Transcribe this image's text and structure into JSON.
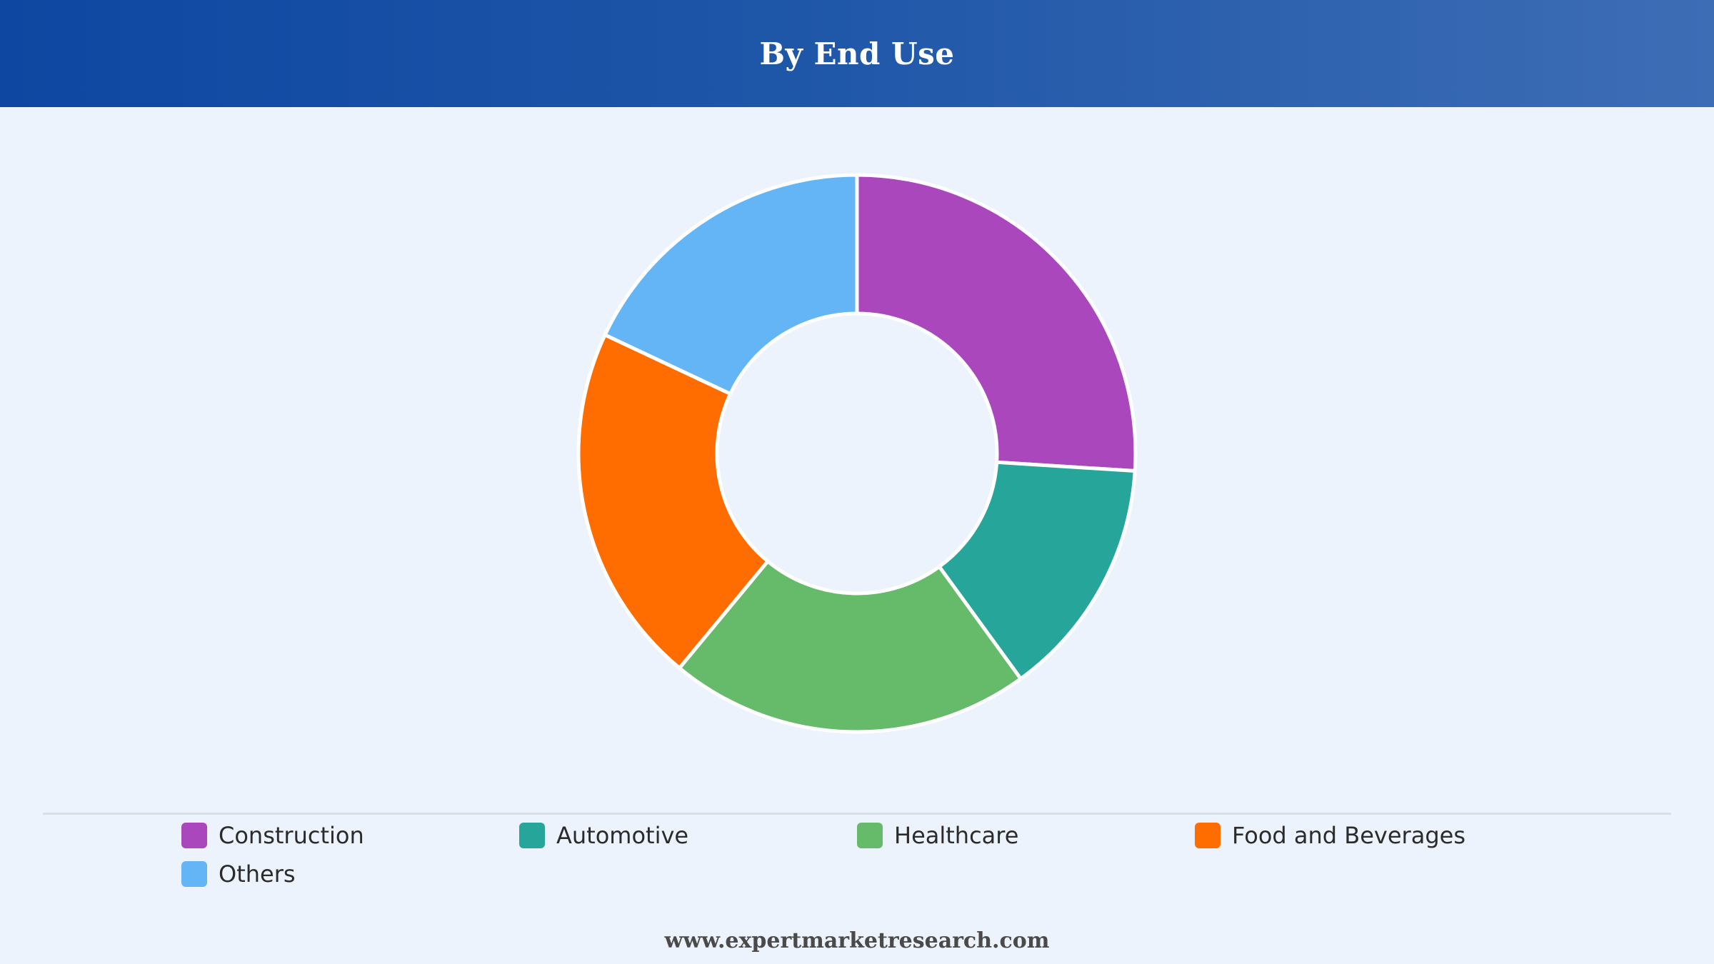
{
  "header": {
    "title": "By End Use"
  },
  "chart_data": {
    "type": "pie",
    "variant": "donut",
    "categories": [
      "Construction",
      "Automotive",
      "Healthcare",
      "Food and Beverages",
      "Others"
    ],
    "values": [
      26,
      14,
      21,
      21,
      18
    ],
    "colors": [
      "#ab47bc",
      "#26a69a",
      "#66bb6a",
      "#ff6d00",
      "#64b5f6"
    ],
    "legend_position": "bottom",
    "title": "By End Use"
  },
  "footer": {
    "source_text": "www.expertmarketresearch.com"
  }
}
